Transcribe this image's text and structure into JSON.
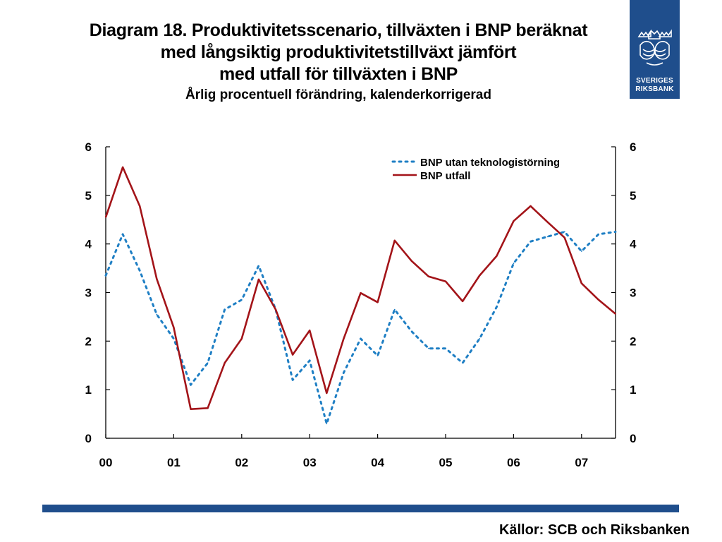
{
  "slide": {
    "title_lines": [
      "Diagram 18. Produktivitetsscenario, tillväxten i BNP beräknat",
      "med långsiktig produktivitetstillväxt jämfört",
      "med utfall för tillväxten i BNP"
    ],
    "subtitle": "Årlig procentuell förändring, kalenderkorrigerad",
    "sources": "Källor: SCB och Riksbanken",
    "logo": {
      "text_line1": "SVERIGES",
      "text_line2": "RIKSBANK",
      "icon": "riksbank-crest-icon"
    }
  },
  "colors": {
    "brand_blue": "#1f4e8c",
    "series_dotted": "#1f7fc4",
    "series_solid": "#a31419"
  },
  "chart_data": {
    "type": "line",
    "ylim": [
      0,
      6
    ],
    "yticks": [
      "0",
      "1",
      "2",
      "3",
      "4",
      "5",
      "6"
    ],
    "xtick_labels": [
      "00",
      "01",
      "02",
      "03",
      "04",
      "05",
      "06",
      "07"
    ],
    "grid": false,
    "legend_position": "top-right",
    "secondary_y_axis": true,
    "series": [
      {
        "name": "BNP utan teknologistörning",
        "style": "dotted",
        "color": "#1f7fc4",
        "values": [
          3.35,
          4.2,
          3.45,
          2.55,
          2.05,
          1.1,
          1.55,
          2.65,
          2.85,
          3.55,
          2.65,
          1.2,
          1.6,
          0.3,
          1.35,
          2.05,
          1.7,
          2.65,
          2.2,
          1.85,
          1.85,
          1.55,
          2.05,
          2.7,
          3.6,
          4.05,
          4.15,
          4.25,
          3.85,
          4.2,
          4.25
        ]
      },
      {
        "name": "BNP utfall",
        "style": "solid",
        "color": "#a31419",
        "values": [
          4.55,
          5.58,
          4.78,
          3.28,
          2.28,
          0.6,
          0.62,
          1.55,
          2.05,
          3.27,
          2.65,
          1.72,
          2.22,
          0.93,
          2.05,
          2.99,
          2.8,
          4.07,
          3.65,
          3.33,
          3.23,
          2.82,
          3.35,
          3.75,
          4.47,
          4.78,
          4.45,
          4.13,
          3.19,
          2.85,
          2.56
        ]
      }
    ]
  }
}
